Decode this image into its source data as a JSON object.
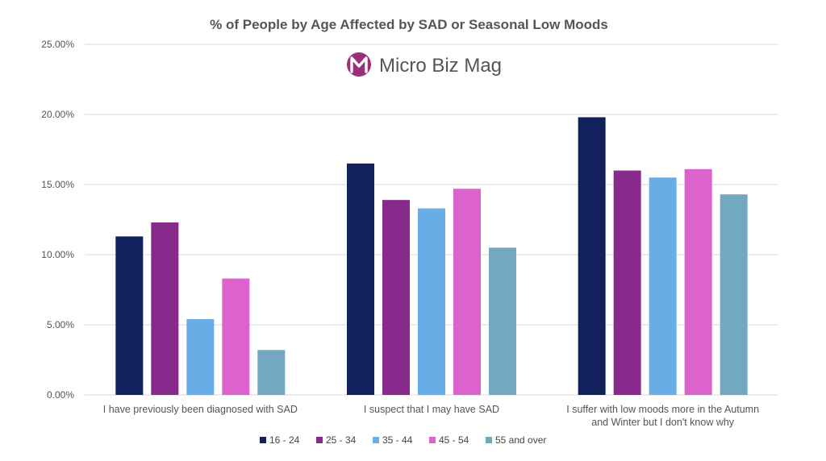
{
  "logo": {
    "text": "Micro Biz Mag",
    "mark_color": "#9b2f7a"
  },
  "chart_data": {
    "type": "bar",
    "title": "% of People by Age Affected by SAD or Seasonal Low Moods",
    "xlabel": "",
    "ylabel": "",
    "ylim": [
      0,
      25
    ],
    "grid": true,
    "legend_position": "bottom",
    "y_ticks": [
      "0.00%",
      "5.00%",
      "10.00%",
      "15.00%",
      "20.00%",
      "25.00%"
    ],
    "y_tick_values": [
      0,
      5,
      10,
      15,
      20,
      25
    ],
    "categories": [
      [
        "I have previously been diagnosed with SAD"
      ],
      [
        "I suspect that I may have SAD"
      ],
      [
        "I suffer with low moods more in the Autumn",
        "and Winter but I don't know why"
      ]
    ],
    "series": [
      {
        "name": "16 - 24",
        "color": "#12205c",
        "values": [
          11.3,
          16.5,
          19.8
        ]
      },
      {
        "name": "25 - 34",
        "color": "#882a8c",
        "values": [
          12.3,
          13.9,
          16.0
        ]
      },
      {
        "name": "35 - 44",
        "color": "#68ade6",
        "values": [
          5.4,
          13.3,
          15.5
        ]
      },
      {
        "name": "45 - 54",
        "color": "#dd63cc",
        "values": [
          8.3,
          14.7,
          16.1
        ]
      },
      {
        "name": "55 and over",
        "color": "#72a8c2",
        "values": [
          3.2,
          10.5,
          14.3
        ]
      }
    ]
  }
}
